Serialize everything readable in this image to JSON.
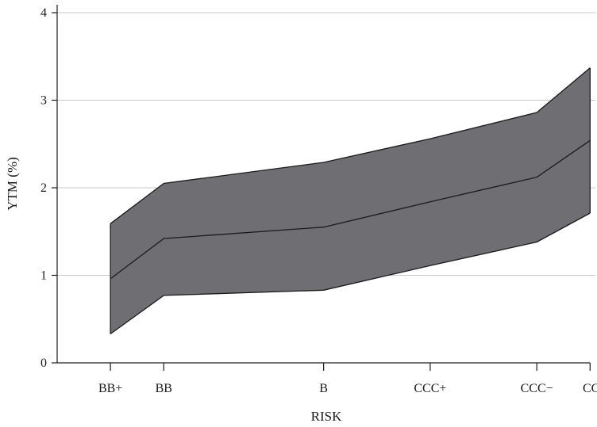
{
  "chart_data": {
    "type": "area",
    "xlabel": "RISK",
    "ylabel": "YTM (%)",
    "categories": [
      "BB+",
      "BB",
      "B",
      "CCC+",
      "CCC−",
      "CC"
    ],
    "x": [
      1,
      2,
      5,
      7,
      9,
      10
    ],
    "ylim": [
      0,
      4
    ],
    "yticks": [
      0,
      1,
      2,
      3,
      4
    ],
    "grid": true,
    "band_color": "#6f6f73",
    "line_color": "#1a1a1a",
    "series": [
      {
        "role": "upper",
        "values": [
          1.59,
          2.05,
          2.29,
          2.56,
          2.86,
          3.37
        ]
      },
      {
        "role": "middle",
        "values": [
          0.96,
          1.42,
          1.55,
          1.84,
          2.12,
          2.54
        ]
      },
      {
        "role": "lower",
        "values": [
          0.33,
          0.77,
          0.83,
          1.11,
          1.38,
          1.71
        ]
      }
    ]
  }
}
